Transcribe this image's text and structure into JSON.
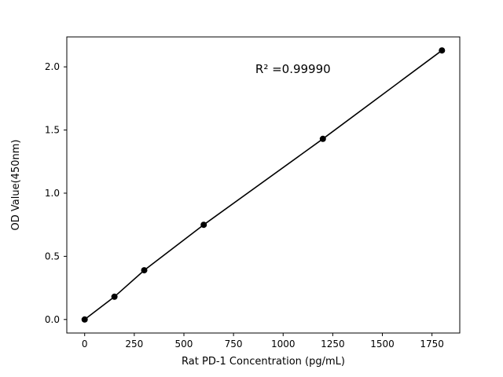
{
  "chart_data": {
    "type": "scatter",
    "title": "",
    "xlabel": "Rat PD-1 Concentration (pg/mL)",
    "ylabel": "OD Value(450nm)",
    "x": [
      0,
      150,
      300,
      600,
      1200,
      1800
    ],
    "y": [
      0.0,
      0.18,
      0.39,
      0.75,
      1.43,
      2.13
    ],
    "line": true,
    "annotation": {
      "text": "R² =0.99990",
      "x": 860,
      "y": 1.95
    },
    "xlim": [
      -90,
      1890
    ],
    "ylim": [
      -0.107,
      2.237
    ],
    "xticks": [
      0,
      250,
      500,
      750,
      1000,
      1250,
      1500,
      1750
    ],
    "yticks": [
      0.0,
      0.5,
      1.0,
      1.5,
      2.0
    ],
    "grid": false,
    "legend": null,
    "line_color": "#000000",
    "marker_color": "#000000",
    "background_color": "#ffffff"
  }
}
